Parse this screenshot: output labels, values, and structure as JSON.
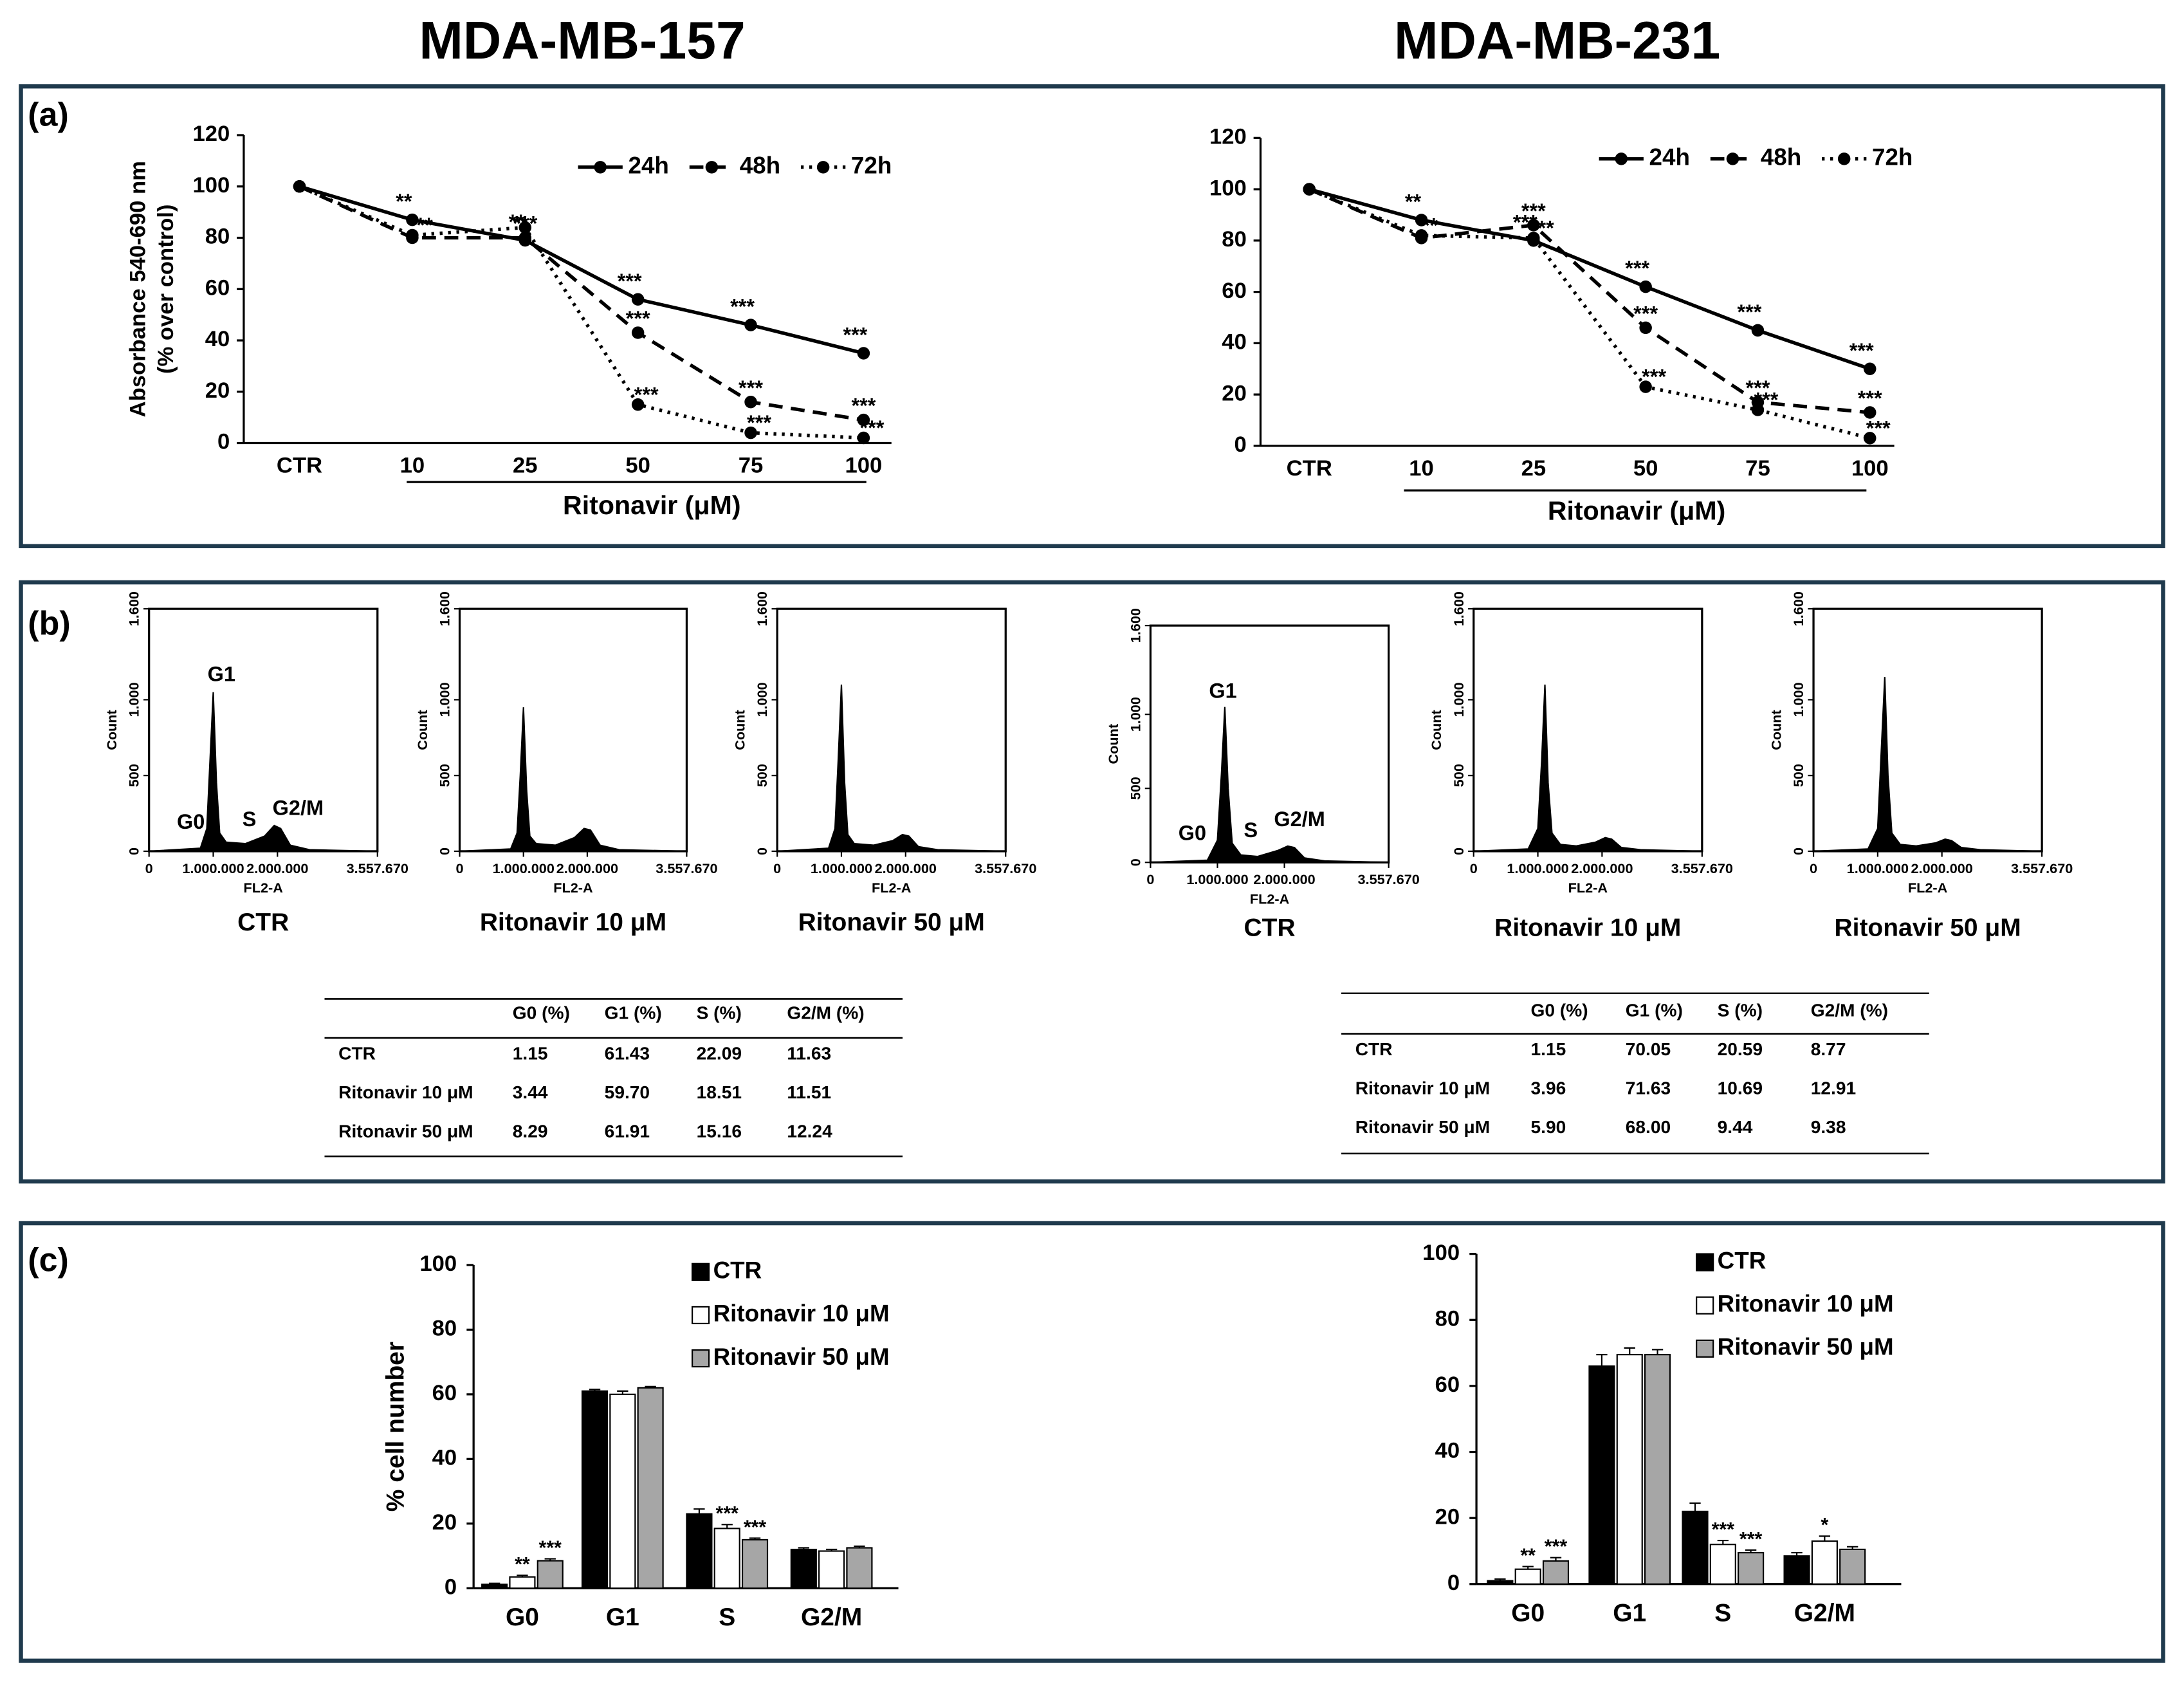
{
  "titles": [
    "MDA-MB-157",
    "MDA-MB-231"
  ],
  "panel_labels": [
    "(a)",
    "(b)",
    "(c)"
  ],
  "chart_data": [
    {
      "type": "line",
      "ylabel": [
        "Absorbance  540-690 nm",
        "(% over control)"
      ],
      "xlabel": "Ritonavir (μM)",
      "categories": [
        "CTR",
        "10",
        "25",
        "50",
        "75",
        "100"
      ],
      "ylim": [
        0,
        120
      ],
      "yticks": [
        0,
        20,
        40,
        60,
        80,
        100,
        120
      ],
      "series": [
        {
          "name": "24h",
          "color": "#000000",
          "style": "solid",
          "values": [
            100,
            87,
            79,
            56,
            46,
            35
          ],
          "significance": [
            null,
            "**",
            "**",
            "***",
            "***",
            "***"
          ]
        },
        {
          "name": "48h",
          "color": "#000000",
          "style": "dashed",
          "values": [
            100,
            80,
            80,
            43,
            16,
            9
          ],
          "significance": [
            null,
            null,
            "***",
            "***",
            "***",
            "***"
          ]
        },
        {
          "name": "72h",
          "color": "#000000",
          "style": "dotted",
          "values": [
            100,
            81,
            84,
            15,
            4,
            2
          ],
          "significance": [
            null,
            "***",
            null,
            "***",
            "***",
            "***"
          ]
        }
      ]
    },
    {
      "type": "line",
      "xlabel": "Ritonavir (μM)",
      "categories": [
        "CTR",
        "10",
        "25",
        "50",
        "75",
        "100"
      ],
      "ylim": [
        0,
        120
      ],
      "yticks": [
        0,
        20,
        40,
        60,
        80,
        100,
        120
      ],
      "series": [
        {
          "name": "24h",
          "color": "#000000",
          "style": "solid",
          "values": [
            100,
            88,
            80,
            62,
            45,
            30
          ],
          "significance": [
            null,
            "**",
            "***",
            "***",
            "***",
            "***"
          ]
        },
        {
          "name": "48h",
          "color": "#000000",
          "style": "dashed",
          "values": [
            100,
            81,
            86,
            46,
            17,
            13
          ],
          "significance": [
            null,
            null,
            "***",
            "***",
            "***",
            "***"
          ]
        },
        {
          "name": "72h",
          "color": "#000000",
          "style": "dotted",
          "values": [
            100,
            82,
            81,
            23,
            14,
            3
          ],
          "significance": [
            null,
            "**",
            "***",
            "***",
            "***",
            "***"
          ]
        }
      ]
    },
    {
      "type": "area",
      "caption": "CTR",
      "xlabel": "FL2-A",
      "ylabel": "Count",
      "phase_labels": [
        "G0",
        "G1",
        "S",
        "G2/M"
      ],
      "color": "#000000",
      "xlim": [
        0,
        3557670
      ],
      "xticks": [
        0,
        {
          "value": 1000000,
          "label": "1.000.000"
        },
        {
          "value": 2000000,
          "label": "2.000.000"
        },
        {
          "value": 3557670,
          "label": "3.557.670"
        }
      ],
      "ylim": [
        0,
        1600
      ],
      "yticks": [
        0,
        500,
        {
          "value": 1000,
          "label": "1.000"
        },
        {
          "value": 1600,
          "label": "1.600"
        }
      ],
      "x": [
        0,
        800000,
        900000,
        950000,
        1000000,
        1050000,
        1100000,
        1200000,
        1500000,
        1800000,
        1950000,
        2050000,
        2200000,
        2500000,
        3557670
      ],
      "values": [
        0,
        20,
        150,
        600,
        1050,
        450,
        120,
        60,
        50,
        100,
        170,
        150,
        40,
        10,
        0
      ]
    },
    {
      "type": "area",
      "caption": "Ritonavir 10 μM",
      "xlabel": "FL2-A",
      "ylabel": "Count",
      "color": "#000000",
      "xlim": [
        0,
        3557670
      ],
      "xticks": [
        0,
        {
          "value": 1000000,
          "label": "1.000.000"
        },
        {
          "value": 2000000,
          "label": "2.000.000"
        },
        {
          "value": 3557670,
          "label": "3.557.670"
        }
      ],
      "ylim": [
        0,
        1600
      ],
      "yticks": [
        0,
        500,
        {
          "value": 1000,
          "label": "1.000"
        },
        {
          "value": 1600,
          "label": "1.600"
        }
      ],
      "x": [
        0,
        800000,
        900000,
        950000,
        1000000,
        1050000,
        1100000,
        1200000,
        1500000,
        1800000,
        1950000,
        2050000,
        2200000,
        2500000,
        3557670
      ],
      "values": [
        0,
        15,
        120,
        500,
        950,
        400,
        100,
        50,
        40,
        90,
        150,
        140,
        40,
        10,
        0
      ]
    },
    {
      "type": "area",
      "caption": "Ritonavir 50 μM",
      "xlabel": "FL2-A",
      "ylabel": "Count",
      "color": "#000000",
      "xlim": [
        0,
        3557670
      ],
      "xticks": [
        0,
        {
          "value": 1000000,
          "label": "1.000.000"
        },
        {
          "value": 2000000,
          "label": "2.000.000"
        },
        {
          "value": 3557670,
          "label": "3.557.670"
        }
      ],
      "ylim": [
        0,
        1600
      ],
      "yticks": [
        0,
        500,
        {
          "value": 1000,
          "label": "1.000"
        },
        {
          "value": 1600,
          "label": "1.600"
        }
      ],
      "x": [
        0,
        800000,
        900000,
        950000,
        1000000,
        1050000,
        1100000,
        1200000,
        1500000,
        1800000,
        1950000,
        2050000,
        2200000,
        2500000,
        3557670
      ],
      "values": [
        0,
        20,
        150,
        600,
        1100,
        450,
        110,
        50,
        40,
        70,
        110,
        100,
        30,
        10,
        0
      ]
    },
    {
      "type": "area",
      "caption": "CTR",
      "xlabel": "FL2-A",
      "ylabel": "Count",
      "phase_labels": [
        "G0",
        "G1",
        "S",
        "G2/M"
      ],
      "color": "#000000",
      "xlim": [
        0,
        3557670
      ],
      "xticks": [
        0,
        {
          "value": 1000000,
          "label": "1.000.000"
        },
        {
          "value": 2000000,
          "label": "2.000.000"
        },
        {
          "value": 3557670,
          "label": "3.557.670"
        }
      ],
      "ylim": [
        0,
        1600
      ],
      "yticks": [
        0,
        500,
        {
          "value": 1000,
          "label": "1.000"
        },
        {
          "value": 1600,
          "label": "1.600"
        }
      ],
      "x": [
        0,
        850000,
        1000000,
        1060000,
        1110000,
        1160000,
        1220000,
        1350000,
        1600000,
        1900000,
        2050000,
        2150000,
        2300000,
        2600000,
        3557670
      ],
      "values": [
        0,
        15,
        150,
        600,
        1050,
        500,
        130,
        50,
        40,
        80,
        110,
        100,
        30,
        10,
        0
      ]
    },
    {
      "type": "area",
      "caption": "Ritonavir 10 μM",
      "xlabel": "FL2-A",
      "ylabel": "Count",
      "color": "#000000",
      "xlim": [
        0,
        3557670
      ],
      "xticks": [
        0,
        {
          "value": 1000000,
          "label": "1.000.000"
        },
        {
          "value": 2000000,
          "label": "2.000.000"
        },
        {
          "value": 3557670,
          "label": "3.557.670"
        }
      ],
      "ylim": [
        0,
        1600
      ],
      "yticks": [
        0,
        500,
        {
          "value": 1000,
          "label": "1.000"
        },
        {
          "value": 1600,
          "label": "1.600"
        }
      ],
      "x": [
        0,
        850000,
        1000000,
        1060000,
        1110000,
        1160000,
        1220000,
        1350000,
        1600000,
        1900000,
        2050000,
        2150000,
        2300000,
        2600000,
        3557670
      ],
      "values": [
        0,
        15,
        150,
        600,
        1100,
        450,
        120,
        45,
        35,
        60,
        90,
        80,
        25,
        10,
        0
      ]
    },
    {
      "type": "area",
      "caption": "Ritonavir 50 μM",
      "xlabel": "FL2-A",
      "ylabel": "Count",
      "color": "#000000",
      "xlim": [
        0,
        3557670
      ],
      "xticks": [
        0,
        {
          "value": 1000000,
          "label": "1.000.000"
        },
        {
          "value": 2000000,
          "label": "2.000.000"
        },
        {
          "value": 3557670,
          "label": "3.557.670"
        }
      ],
      "ylim": [
        0,
        1600
      ],
      "yticks": [
        0,
        500,
        {
          "value": 1000,
          "label": "1.000"
        },
        {
          "value": 1600,
          "label": "1.600"
        }
      ],
      "x": [
        0,
        850000,
        1000000,
        1060000,
        1110000,
        1160000,
        1220000,
        1350000,
        1600000,
        1900000,
        2050000,
        2150000,
        2300000,
        2600000,
        3557670
      ],
      "values": [
        0,
        15,
        150,
        700,
        1150,
        500,
        120,
        45,
        35,
        55,
        80,
        70,
        25,
        10,
        0
      ]
    },
    {
      "type": "bar",
      "ylabel": "% cell number",
      "categories": [
        "G0",
        "G1",
        "S",
        "G2/M"
      ],
      "ylim": [
        0,
        100
      ],
      "yticks": [
        0,
        20,
        40,
        60,
        80,
        100
      ],
      "series": [
        {
          "name": "CTR",
          "color": "#000000",
          "values": [
            1.2,
            61,
            23,
            12
          ],
          "errors": [
            0.3,
            0.5,
            1.5,
            0.5
          ],
          "significance": [
            null,
            null,
            null,
            null
          ]
        },
        {
          "name": "Ritonavir 10 μM",
          "color": "#ffffff",
          "values": [
            3.5,
            60,
            18.5,
            11.5
          ],
          "errors": [
            0.5,
            1,
            1.2,
            0.5
          ],
          "significance": [
            "**",
            null,
            "***",
            null
          ]
        },
        {
          "name": "Ritonavir 50 μM",
          "color": "#a6a6a6",
          "values": [
            8.5,
            62,
            15,
            12.5
          ],
          "errors": [
            0.6,
            0.4,
            0.5,
            0.5
          ],
          "significance": [
            "***",
            null,
            "***",
            null
          ]
        }
      ]
    },
    {
      "type": "bar",
      "categories": [
        "G0",
        "G1",
        "S",
        "G2/M"
      ],
      "ylim": [
        0,
        100
      ],
      "yticks": [
        0,
        20,
        40,
        60,
        80,
        100
      ],
      "series": [
        {
          "name": "CTR",
          "color": "#000000",
          "values": [
            1,
            66,
            22,
            8.5
          ],
          "errors": [
            0.5,
            3.5,
            2.5,
            1
          ],
          "significance": [
            null,
            null,
            null,
            null
          ]
        },
        {
          "name": "Ritonavir 10 μM",
          "color": "#ffffff",
          "values": [
            4.5,
            69.5,
            12,
            13
          ],
          "errors": [
            0.8,
            2,
            1.2,
            1.5
          ],
          "significance": [
            "**",
            null,
            "***",
            "*"
          ]
        },
        {
          "name": "Ritonavir 50 μM",
          "color": "#a6a6a6",
          "values": [
            7,
            69.5,
            9.5,
            10.5
          ],
          "errors": [
            1,
            1.5,
            0.8,
            0.8
          ],
          "significance": [
            "***",
            null,
            "***",
            null
          ]
        }
      ]
    }
  ],
  "tables": [
    {
      "columns": [
        "G0 (%)",
        "G1 (%)",
        "S (%)",
        "G2/M (%)"
      ],
      "rows": [
        [
          "CTR",
          "1.15",
          "61.43",
          "22.09",
          "11.63"
        ],
        [
          "Ritonavir 10 μM",
          "3.44",
          "59.70",
          "18.51",
          "11.51"
        ],
        [
          "Ritonavir 50 μM",
          "8.29",
          "61.91",
          "15.16",
          "12.24"
        ]
      ]
    },
    {
      "columns": [
        "G0 (%)",
        "G1 (%)",
        "S (%)",
        "G2/M (%)"
      ],
      "rows": [
        [
          "CTR",
          "1.15",
          "70.05",
          "20.59",
          "8.77"
        ],
        [
          "Ritonavir 10 μM",
          "3.96",
          "71.63",
          "10.69",
          "12.91"
        ],
        [
          "Ritonavir 50 μM",
          "5.90",
          "68.00",
          "9.44",
          "9.38"
        ]
      ]
    }
  ]
}
